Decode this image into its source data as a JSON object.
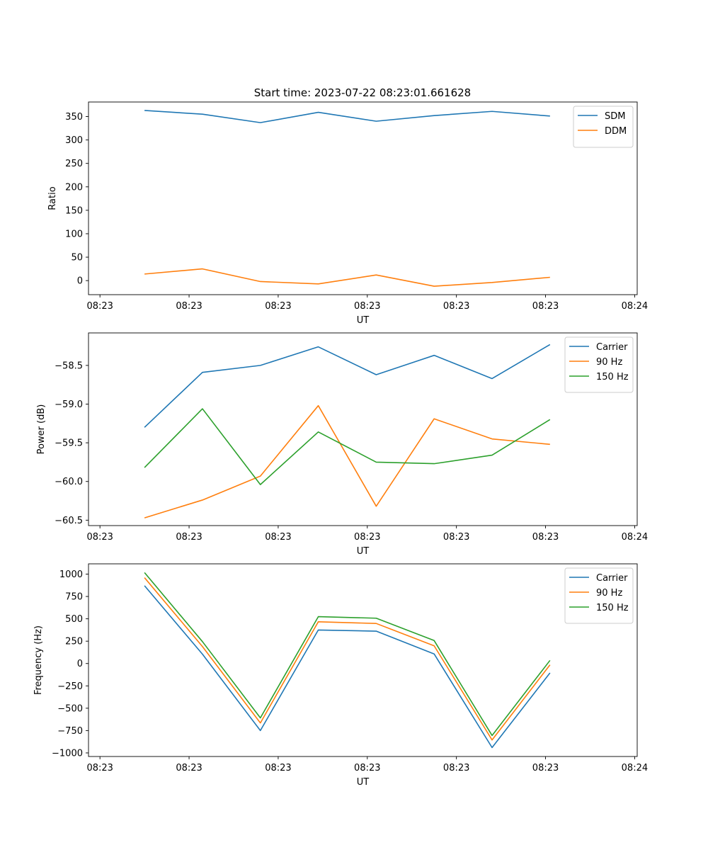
{
  "figure_title": "Start time: 2023-07-22 08:23:01.661628",
  "colors": {
    "blue": "#1f77b4",
    "orange": "#ff7f0e",
    "green": "#2ca02c"
  },
  "chart_data": [
    {
      "type": "line",
      "title": "Start time: 2023-07-22 08:23:01.661628",
      "xlabel": "UT",
      "ylabel": "Ratio",
      "x_tick_labels": [
        "08:23",
        "08:23",
        "08:23",
        "08:23",
        "08:23",
        "08:23",
        "08:24"
      ],
      "x_range": [
        -0.1286,
        6.0286
      ],
      "x": [
        0.5,
        1.15,
        1.8,
        2.45,
        3.1,
        3.75,
        4.4,
        5.05
      ],
      "ylim": [
        -30,
        381
      ],
      "yticks": [
        0,
        50,
        100,
        150,
        200,
        250,
        300,
        350
      ],
      "grid": false,
      "legend": "upper right",
      "series": [
        {
          "name": "SDM",
          "color": "#1f77b4",
          "values": [
            363,
            355,
            337,
            359,
            340,
            352,
            361,
            351
          ]
        },
        {
          "name": "DDM",
          "color": "#ff7f0e",
          "values": [
            14,
            25,
            -2,
            -7,
            12,
            -12,
            -4,
            7
          ]
        }
      ]
    },
    {
      "type": "line",
      "title": "",
      "xlabel": "UT",
      "ylabel": "Power (dB)",
      "x_tick_labels": [
        "08:23",
        "08:23",
        "08:23",
        "08:23",
        "08:23",
        "08:23",
        "08:24"
      ],
      "x_range": [
        -0.1286,
        6.0286
      ],
      "x": [
        0.5,
        1.15,
        1.8,
        2.45,
        3.1,
        3.75,
        4.4,
        5.05
      ],
      "ylim": [
        -60.57,
        -58.08
      ],
      "yticks": [
        -60.5,
        -60.0,
        -59.5,
        -59.0,
        -58.5
      ],
      "ytick_labels": [
        "−60.5",
        "−60.0",
        "−59.5",
        "−59.0",
        "−58.5"
      ],
      "grid": false,
      "legend": "upper right",
      "series": [
        {
          "name": "Carrier",
          "color": "#1f77b4",
          "values": [
            -59.3,
            -58.59,
            -58.5,
            -58.26,
            -58.62,
            -58.37,
            -58.67,
            -58.23
          ]
        },
        {
          "name": "90 Hz",
          "color": "#ff7f0e",
          "values": [
            -60.47,
            -60.24,
            -59.93,
            -59.02,
            -60.32,
            -59.19,
            -59.45,
            -59.52
          ]
        },
        {
          "name": "150 Hz",
          "color": "#2ca02c",
          "values": [
            -59.82,
            -59.06,
            -60.04,
            -59.36,
            -59.75,
            -59.77,
            -59.66,
            -59.2
          ]
        }
      ]
    },
    {
      "type": "line",
      "title": "",
      "xlabel": "UT",
      "ylabel": "Frequency (Hz)",
      "x_tick_labels": [
        "08:23",
        "08:23",
        "08:23",
        "08:23",
        "08:23",
        "08:23",
        "08:24"
      ],
      "x_range": [
        -0.1286,
        6.0286
      ],
      "x": [
        0.5,
        1.15,
        1.8,
        2.45,
        3.1,
        3.75,
        4.4,
        5.05
      ],
      "ylim": [
        -1040,
        1115
      ],
      "yticks": [
        -1000,
        -750,
        -500,
        -250,
        0,
        250,
        500,
        750,
        1000
      ],
      "ytick_labels": [
        "−1000",
        "−750",
        "−500",
        "−250",
        "0",
        "250",
        "500",
        "750",
        "1000"
      ],
      "grid": false,
      "legend": "upper right",
      "series": [
        {
          "name": "Carrier",
          "color": "#1f77b4",
          "values": [
            870,
            105,
            -750,
            375,
            362,
            107,
            -940,
            -105
          ]
        },
        {
          "name": "90 Hz",
          "color": "#ff7f0e",
          "values": [
            960,
            190,
            -665,
            467,
            448,
            198,
            -855,
            -15
          ]
        },
        {
          "name": "150 Hz",
          "color": "#2ca02c",
          "values": [
            1017,
            245,
            -608,
            524,
            507,
            257,
            -805,
            35
          ]
        }
      ]
    }
  ]
}
